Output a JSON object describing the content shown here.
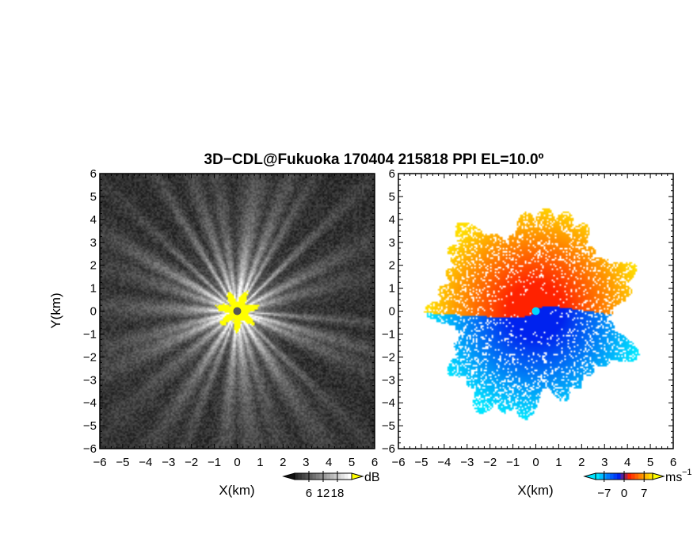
{
  "title": "3D−CDL@Fukuoka 170404 215818 PPI EL=10.0º",
  "chart_data": [
    {
      "type": "heatmap",
      "panel": "left",
      "quantity": "reflectivity",
      "xlabel": "X(km)",
      "ylabel": "Y(km)",
      "xlim": [
        -6,
        6
      ],
      "ylim": [
        -6,
        6
      ],
      "x_ticks": [
        "−6",
        "−5",
        "−4",
        "−3",
        "−2",
        "−1",
        "0",
        "1",
        "2",
        "3",
        "4",
        "5",
        "6"
      ],
      "y_ticks": [
        "6",
        "5",
        "4",
        "3",
        "2",
        "1",
        "0",
        "−1",
        "−2",
        "−3",
        "−4",
        "−5",
        "−6"
      ],
      "colormap": "grayscale, saturated yellow near radar",
      "colors": {
        "low": "#1a1a1a",
        "high": "#ffffff",
        "saturated": "#ffff00",
        "radar_site": "#555555"
      },
      "colorbar": {
        "unit": "dB",
        "ticks": [
          "6",
          "12",
          "18"
        ],
        "range": [
          0,
          24
        ]
      },
      "grid": false
    },
    {
      "type": "heatmap",
      "panel": "right",
      "quantity": "radial velocity",
      "xlabel": "X(km)",
      "xlim": [
        -6,
        6
      ],
      "ylim": [
        -6,
        6
      ],
      "x_ticks": [
        "−6",
        "−5",
        "−4",
        "−3",
        "−2",
        "−1",
        "0",
        "1",
        "2",
        "3",
        "4",
        "5",
        "6"
      ],
      "y_ticks": [
        "6",
        "5",
        "4",
        "3",
        "2",
        "1",
        "0",
        "−1",
        "−2",
        "−3",
        "−4",
        "−5",
        "−6"
      ],
      "colormap": "cyan-blue (negative) to red-orange-yellow (positive)",
      "colors": {
        "neg_far": "#00e5ff",
        "neg": "#0022ee",
        "pos": "#ff2200",
        "pos_far": "#ffdd00",
        "radar_site": "#00d8ff"
      },
      "colorbar": {
        "unit": "ms",
        "unit_exponent": "−1",
        "ticks": [
          "−7",
          "0",
          "7"
        ],
        "range": [
          -10,
          10
        ]
      },
      "grid": false
    }
  ]
}
